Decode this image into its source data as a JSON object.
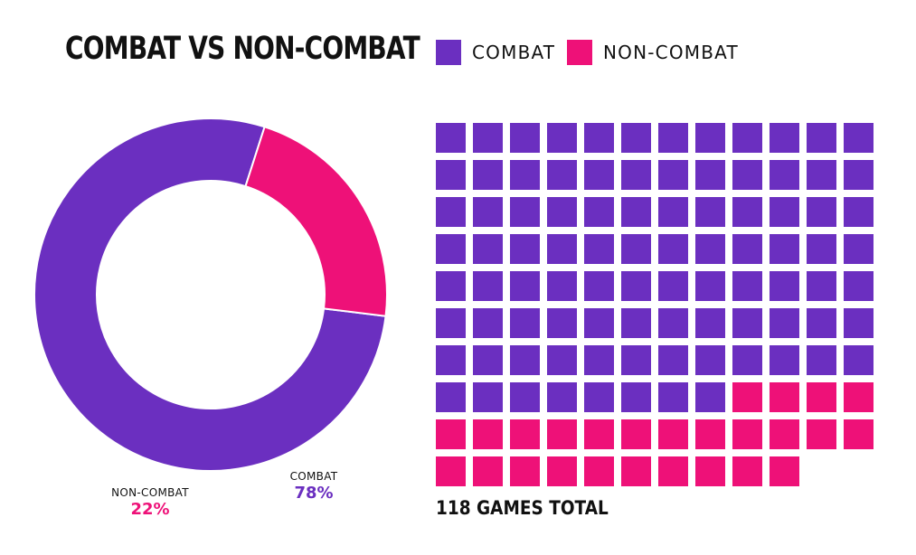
{
  "title": "COMBAT VS NON-COMBAT",
  "colors": {
    "combat": "#6b2fc0",
    "noncombat": "#ee1178"
  },
  "legend": [
    {
      "label": "COMBAT",
      "color": "#6b2fc0"
    },
    {
      "label": "NON-COMBAT",
      "color": "#ee1178"
    }
  ],
  "donut_labels": {
    "combat_name": "COMBAT",
    "combat_pct": "78%",
    "noncombat_name": "NON-COMBAT",
    "noncombat_pct": "22%"
  },
  "footnote": "118 GAMES TOTAL",
  "chart_data": [
    {
      "type": "pie",
      "title": "COMBAT VS NON-COMBAT",
      "donut": true,
      "categories": [
        "COMBAT",
        "NON-COMBAT"
      ],
      "values": [
        78,
        22
      ],
      "value_labels": [
        "78%",
        "22%"
      ],
      "colors": [
        "#6b2fc0",
        "#ee1178"
      ]
    },
    {
      "type": "waffle",
      "categories": [
        "COMBAT",
        "NON-COMBAT"
      ],
      "values": [
        92,
        26
      ],
      "total": 118,
      "columns": 12,
      "colors": [
        "#6b2fc0",
        "#ee1178"
      ],
      "annotation": "118 GAMES TOTAL"
    }
  ]
}
